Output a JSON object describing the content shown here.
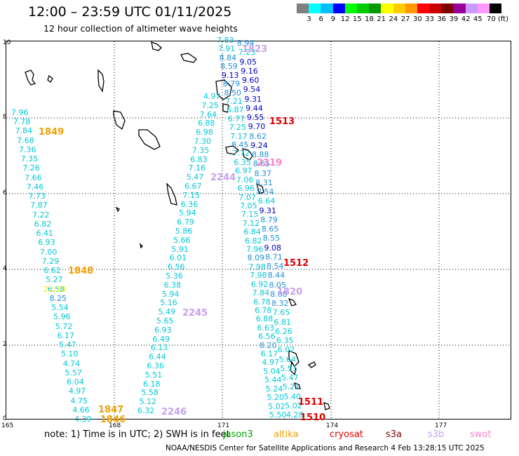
{
  "header": {
    "title": "12:00 – 23:59 UTC 01/11/2025",
    "subtitle": "12 hour collection of altimeter wave heights"
  },
  "colorbar": {
    "colors": [
      "#808080",
      "#00ffff",
      "#00bfff",
      "#0000ff",
      "#00ff00",
      "#00cc00",
      "#009900",
      "#ffff00",
      "#ffcc00",
      "#ff9900",
      "#ff0000",
      "#cc0000",
      "#800000",
      "#990099",
      "#cc99ff",
      "#ff99ff",
      "#000000"
    ],
    "labels": [
      "3",
      "6",
      "9",
      "12",
      "15",
      "18",
      "21",
      "24",
      "27",
      "30",
      "33",
      "36",
      "39",
      "42",
      "45",
      "70 (ft)"
    ]
  },
  "map": {
    "lon_ticks": [
      "165",
      "168",
      "171",
      "174",
      "177"
    ],
    "lat_ticks": [
      "10",
      "8",
      "6",
      "4",
      "2",
      "0"
    ]
  },
  "passes": [
    {
      "id": "1849",
      "color": "#f0a000"
    },
    {
      "id": "1848",
      "color": "#f0a000"
    },
    {
      "id": "1847",
      "color": "#f0a000"
    },
    {
      "id": "1846",
      "color": "#f0a000"
    },
    {
      "id": "2244",
      "color": "#c8a0f0"
    },
    {
      "id": "2245",
      "color": "#c8a0f0"
    },
    {
      "id": "2246",
      "color": "#c8a0f0"
    },
    {
      "id": "1513",
      "color": "#e00000"
    },
    {
      "id": "1512",
      "color": "#e00000"
    },
    {
      "id": "1511",
      "color": "#e00000"
    },
    {
      "id": "1510",
      "color": "#e00000"
    },
    {
      "id": "2319",
      "color": "#ff80d0"
    },
    {
      "id": "1820",
      "color": "#c8a0f0"
    },
    {
      "id": "1823",
      "color": "#c8a0f0"
    },
    {
      "id": "22:10",
      "color": "#f0f000"
    }
  ],
  "tracks": {
    "west": [
      "7.96",
      "7.78",
      "7.84",
      "7.68",
      "7.36",
      "7.35",
      "7.26",
      "7.66",
      "7.46",
      "7.73",
      "7.87",
      "7.22",
      "6.82",
      "6.41",
      "6.93",
      "7.00",
      "7.29",
      "6.62",
      "5.27",
      "6.58",
      "8.25",
      "5.54",
      "5.96",
      "5.72",
      "6.17",
      "5.47",
      "5.10",
      "4.74",
      "5.57",
      "6.04",
      "4.97",
      "4.75",
      "4.66",
      "4.39"
    ],
    "middle": [
      "4.97",
      "7.25",
      "7.64",
      "6.88",
      "6.98",
      "7.30",
      "7.35",
      "6.83",
      "7.16",
      "5.47",
      "6.67",
      "7.15",
      "6.36",
      "5.94",
      "6.79",
      "5.86",
      "5.66",
      "5.91",
      "6.01",
      "6.56",
      "5.36",
      "6.38",
      "5.94",
      "5.16",
      "5.49",
      "5.65",
      "6.93",
      "6.49",
      "6.13",
      "6.44",
      "6.36",
      "5.51",
      "6.18",
      "5.58",
      "5.12",
      "6.32"
    ],
    "east_a": [
      "7.83",
      "7.91",
      "8.84",
      "8.59",
      "9.13",
      "8.79",
      "8.50",
      "7.21",
      "6.87",
      "6.77",
      "7.25",
      "7.17",
      "8.45",
      "7.72",
      "6.35",
      "6.97",
      "7.06",
      "6.96",
      "7.07",
      "7.05",
      "7.15",
      "7.12",
      "6.84",
      "6.82",
      "7.96",
      "8.09",
      "7.98",
      "7.98",
      "6.92",
      "7.84",
      "6.78",
      "6.78",
      "6.88",
      "6.63",
      "6.56",
      "8.20",
      "6.17",
      "4.97",
      "5.04",
      "5.44",
      "5.24",
      "5.20",
      "5.02",
      "5.50"
    ],
    "east_b": [
      "8.94",
      "7.23",
      "9.05",
      "9.16",
      "9.60",
      "9.54",
      "9.31",
      "9.44",
      "9.55",
      "9.70",
      "8.62",
      "9.24",
      "8.88",
      "8.65",
      "8.37",
      "8.31",
      "8.54",
      "6.64",
      "9.31",
      "8.79",
      "8.65",
      "8.55",
      "9.08",
      "8.71",
      "8.54",
      "8.44",
      "8.05",
      "8.08",
      "8.32",
      "7.65",
      "6.81",
      "6.26",
      "6.35",
      "6.02",
      "5.64",
      "5.51",
      "5.47",
      "5.21",
      "5.40",
      "5.02",
      "4.28"
    ]
  },
  "note": "note:  1) Time is in UTC;  2) SWH is in feet",
  "satellites": [
    {
      "name": "jason3",
      "color": "#00a000"
    },
    {
      "name": "altika",
      "color": "#f0a000"
    },
    {
      "name": "cryosat",
      "color": "#e00000"
    },
    {
      "name": "s3a",
      "color": "#800000"
    },
    {
      "name": "s3b",
      "color": "#c8a0f0"
    },
    {
      "name": "swot",
      "color": "#ff80d0"
    }
  ],
  "footer": "NOAA/NESDIS Center for Satellite Applications and Research      4 Feb 13:28:15 UTC 2025"
}
